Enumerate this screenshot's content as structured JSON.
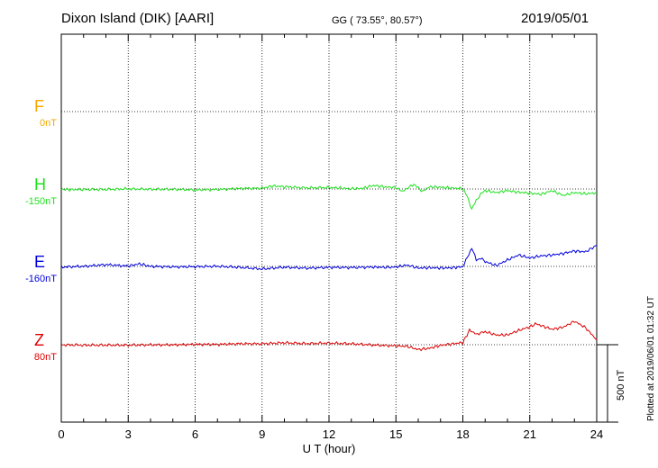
{
  "header": {
    "station": "Dixon Island (DIK)  [AARI]",
    "coords": "GG ( 73.55°,  80.57°)",
    "date": "2019/05/01"
  },
  "plotted_note": "Plotted at 2019/06/01 01:32 UT",
  "colors": {
    "F": "#f5a800",
    "H": "#1ee01e",
    "E": "#0000dd",
    "Z": "#dd0000"
  },
  "chart_data": {
    "type": "line",
    "xlabel": "U T (hour)",
    "xlim": [
      0,
      24
    ],
    "xticks": [
      "0",
      "3",
      "6",
      "9",
      "12",
      "15",
      "18",
      "21",
      "24"
    ],
    "channels": [
      {
        "name": "F",
        "baseline": "0nT"
      },
      {
        "name": "H",
        "baseline": "-150nT"
      },
      {
        "name": "E",
        "baseline": "-160nT"
      },
      {
        "name": "Z",
        "baseline": "80nT"
      }
    ],
    "scale_bar": "500 nT",
    "series": [
      {
        "name": "H",
        "points": [
          [
            0,
            -2
          ],
          [
            0.5,
            -4
          ],
          [
            1,
            -3
          ],
          [
            2,
            -3
          ],
          [
            3,
            1
          ],
          [
            4,
            -2
          ],
          [
            5,
            -2
          ],
          [
            6,
            -6
          ],
          [
            7,
            -3
          ],
          [
            8,
            3
          ],
          [
            9,
            5
          ],
          [
            9.5,
            19
          ],
          [
            10,
            14
          ],
          [
            11,
            7
          ],
          [
            12,
            9
          ],
          [
            12.5,
            6
          ],
          [
            13,
            1
          ],
          [
            13.5,
            4
          ],
          [
            14,
            22
          ],
          [
            14.5,
            13
          ],
          [
            15,
            9
          ],
          [
            15.3,
            -15
          ],
          [
            15.6,
            12
          ],
          [
            15.8,
            30
          ],
          [
            16,
            6
          ],
          [
            16.2,
            -14
          ],
          [
            16.5,
            13
          ],
          [
            17,
            11
          ],
          [
            17.5,
            6
          ],
          [
            18,
            2
          ],
          [
            18.2,
            -48
          ],
          [
            18.4,
            -125
          ],
          [
            18.6,
            -70
          ],
          [
            18.8,
            -32
          ],
          [
            19,
            -10
          ],
          [
            19.5,
            -22
          ],
          [
            20,
            -10
          ],
          [
            20.5,
            -20
          ],
          [
            21,
            -25
          ],
          [
            21.5,
            -33
          ],
          [
            22,
            -10
          ],
          [
            22.5,
            -40
          ],
          [
            23,
            -22
          ],
          [
            23.5,
            -30
          ],
          [
            24,
            -23
          ]
        ]
      },
      {
        "name": "E",
        "points": [
          [
            0,
            -4
          ],
          [
            1,
            0
          ],
          [
            2,
            11
          ],
          [
            3,
            2
          ],
          [
            3.5,
            16
          ],
          [
            4,
            0
          ],
          [
            5,
            -3
          ],
          [
            6,
            -2
          ],
          [
            7,
            1
          ],
          [
            8,
            -6
          ],
          [
            9,
            -16
          ],
          [
            10,
            -5
          ],
          [
            11,
            -11
          ],
          [
            12,
            -6
          ],
          [
            13,
            -7
          ],
          [
            14,
            -4
          ],
          [
            14.5,
            -6
          ],
          [
            15,
            -4
          ],
          [
            15.5,
            8
          ],
          [
            16,
            -10
          ],
          [
            16.5,
            -8
          ],
          [
            17,
            -10
          ],
          [
            17.5,
            -9
          ],
          [
            18,
            -2
          ],
          [
            18.2,
            55
          ],
          [
            18.4,
            115
          ],
          [
            18.6,
            40
          ],
          [
            18.8,
            50
          ],
          [
            19,
            30
          ],
          [
            19.5,
            5
          ],
          [
            20,
            40
          ],
          [
            20.5,
            70
          ],
          [
            21,
            52
          ],
          [
            21.5,
            65
          ],
          [
            22,
            70
          ],
          [
            22.5,
            80
          ],
          [
            23,
            95
          ],
          [
            23.5,
            90
          ],
          [
            24,
            130
          ]
        ]
      },
      {
        "name": "Z",
        "points": [
          [
            0,
            -1
          ],
          [
            1,
            -3
          ],
          [
            2,
            -3
          ],
          [
            3,
            -3
          ],
          [
            4,
            -1
          ],
          [
            5,
            -1
          ],
          [
            6,
            2
          ],
          [
            7,
            2
          ],
          [
            8,
            6
          ],
          [
            9,
            6
          ],
          [
            10,
            12
          ],
          [
            11,
            7
          ],
          [
            12,
            10
          ],
          [
            13,
            6
          ],
          [
            14,
            -2
          ],
          [
            15,
            -8
          ],
          [
            15.5,
            -10
          ],
          [
            16,
            -30
          ],
          [
            16.5,
            -22
          ],
          [
            17,
            -4
          ],
          [
            17.5,
            5
          ],
          [
            18,
            13
          ],
          [
            18.3,
            90
          ],
          [
            18.6,
            65
          ],
          [
            19,
            80
          ],
          [
            19.5,
            60
          ],
          [
            20,
            60
          ],
          [
            20.5,
            88
          ],
          [
            21,
            110
          ],
          [
            21.3,
            130
          ],
          [
            21.5,
            118
          ],
          [
            22,
            95
          ],
          [
            22.5,
            108
          ],
          [
            23,
            145
          ],
          [
            23.5,
            105
          ],
          [
            24,
            30
          ]
        ]
      }
    ]
  }
}
